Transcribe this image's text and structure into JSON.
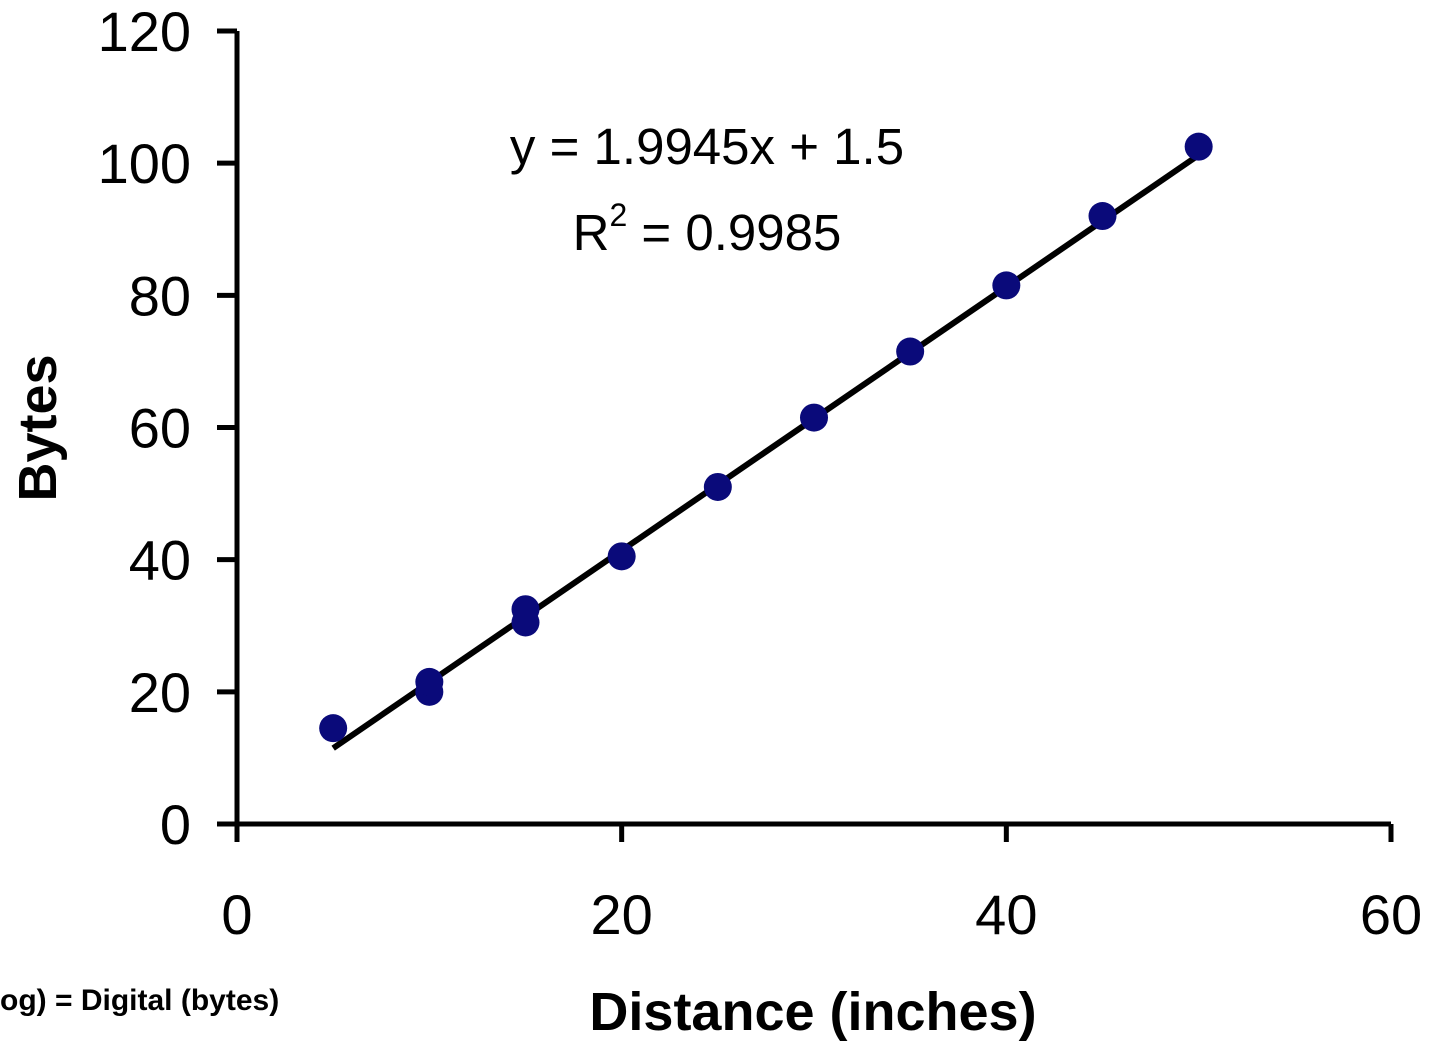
{
  "chart_data": {
    "type": "scatter",
    "xlabel": "Distance (inches)",
    "ylabel": "Bytes",
    "xlim": [
      0,
      60
    ],
    "ylim": [
      0,
      120
    ],
    "x_ticks": [
      "0",
      "20",
      "40",
      "60"
    ],
    "y_ticks": [
      "0",
      "20",
      "40",
      "60",
      "80",
      "100",
      "120"
    ],
    "grid": false,
    "legend": "none",
    "series": [
      {
        "color": "#0a0a7a",
        "points": [
          {
            "x": 5,
            "y": 14.5
          },
          {
            "x": 10,
            "y": 20
          },
          {
            "x": 10,
            "y": 21.5
          },
          {
            "x": 15,
            "y": 30.5
          },
          {
            "x": 15,
            "y": 32.5
          },
          {
            "x": 20,
            "y": 40.5
          },
          {
            "x": 25,
            "y": 51
          },
          {
            "x": 30,
            "y": 61.5
          },
          {
            "x": 35,
            "y": 71.5
          },
          {
            "x": 40,
            "y": 81.5
          },
          {
            "x": 45,
            "y": 92
          },
          {
            "x": 50,
            "y": 102.5
          }
        ]
      }
    ],
    "trendline": {
      "type": "linear",
      "color": "#000000",
      "slope": 1.9945,
      "intercept": 1.5,
      "x_range": [
        5,
        50
      ],
      "equation_text": "y = 1.9945x + 1.5",
      "r2_prefix": "R",
      "r2_superscript": "2",
      "r2_value_text": " = 0.9985"
    },
    "footnote": "og) = Digital (bytes)"
  }
}
